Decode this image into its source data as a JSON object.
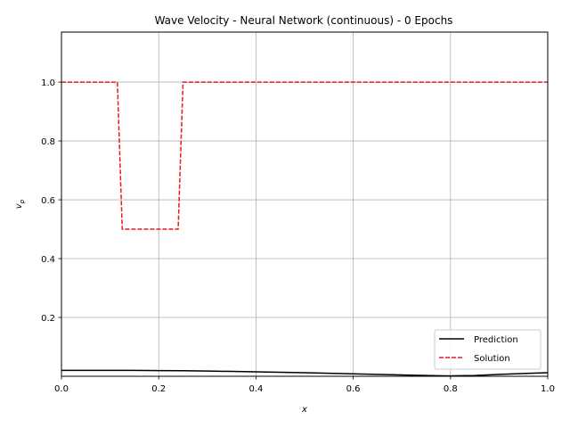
{
  "chart_data": {
    "type": "line",
    "title": "Wave Velocity - Neural Network (continuous) - 0 Epochs",
    "xlabel": "x",
    "ylabel": "v",
    "ylabel_subscript": "p",
    "xlim": [
      0.0,
      1.0
    ],
    "ylim": [
      0.0,
      1.17
    ],
    "grid": true,
    "legend_position": "lower-right",
    "x_ticks": [
      0.0,
      0.2,
      0.4,
      0.6,
      0.8,
      1.0
    ],
    "x_tick_labels": [
      "0.0",
      "0.2",
      "0.4",
      "0.6",
      "0.8",
      "1.0"
    ],
    "y_ticks": [
      0.2,
      0.4,
      0.6,
      0.8,
      1.0
    ],
    "y_tick_labels": [
      "0.2",
      "0.4",
      "0.6",
      "0.8",
      "1.0"
    ],
    "series": [
      {
        "name": "Prediction",
        "color": "#000000",
        "style": "solid",
        "x": [
          0.0,
          0.05,
          0.1,
          0.15,
          0.2,
          0.25,
          0.3,
          0.35,
          0.4,
          0.45,
          0.5,
          0.55,
          0.6,
          0.65,
          0.7,
          0.75,
          0.8,
          0.85,
          0.9,
          0.95,
          1.0
        ],
        "y": [
          0.02,
          0.0202,
          0.0202,
          0.02,
          0.0195,
          0.0188,
          0.0178,
          0.0166,
          0.0152,
          0.0137,
          0.012,
          0.0102,
          0.0083,
          0.0064,
          0.0045,
          0.0025,
          0.0012,
          0.0028,
          0.0065,
          0.0095,
          0.012
        ]
      },
      {
        "name": "Solution",
        "color": "#e41a1c",
        "style": "dashed",
        "x": [
          0.0,
          0.115,
          0.125,
          0.24,
          0.25,
          1.0
        ],
        "y": [
          1.0,
          1.0,
          0.5,
          0.5,
          1.0,
          1.0
        ]
      }
    ]
  }
}
